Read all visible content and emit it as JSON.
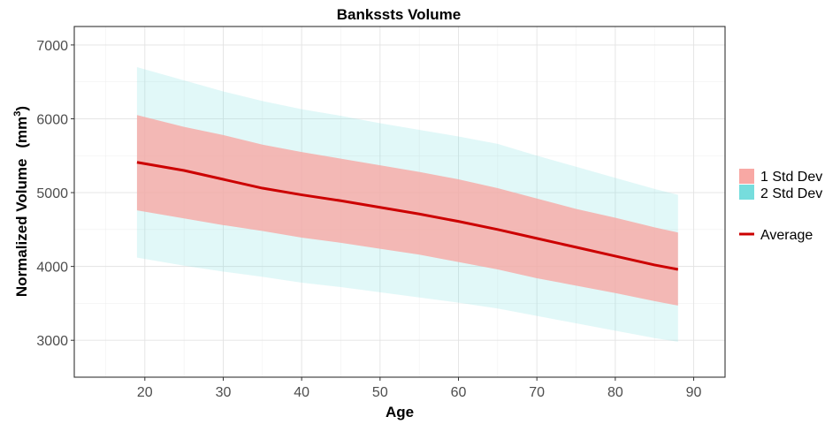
{
  "chart_data": {
    "type": "area",
    "title": "Bankssts Volume",
    "xlabel": "Age",
    "ylabel": "Normalized Volume",
    "ylabel_unit_base": "mm",
    "ylabel_unit_exp": "3",
    "xlim": [
      11,
      94
    ],
    "ylim": [
      2500,
      7250
    ],
    "x_ticks": [
      20,
      30,
      40,
      50,
      60,
      70,
      80,
      90
    ],
    "y_ticks": [
      3000,
      4000,
      5000,
      6000,
      7000
    ],
    "grid": true,
    "legend_position": "right",
    "x": [
      19,
      25,
      30,
      35,
      40,
      45,
      50,
      55,
      60,
      65,
      70,
      75,
      80,
      85,
      88
    ],
    "series": [
      {
        "name": "2 Std Dev",
        "color": "#76dddd",
        "lower": [
          4120,
          4010,
          3930,
          3860,
          3780,
          3720,
          3650,
          3580,
          3510,
          3430,
          3330,
          3230,
          3130,
          3030,
          2980
        ],
        "upper": [
          6700,
          6520,
          6370,
          6240,
          6130,
          6040,
          5940,
          5850,
          5760,
          5660,
          5500,
          5350,
          5200,
          5050,
          4970
        ]
      },
      {
        "name": "1 Std Dev",
        "color": "#f8a8a4",
        "lower": [
          4760,
          4650,
          4560,
          4480,
          4390,
          4320,
          4240,
          4160,
          4060,
          3960,
          3840,
          3740,
          3640,
          3530,
          3470
        ],
        "upper": [
          6050,
          5890,
          5780,
          5650,
          5550,
          5460,
          5370,
          5280,
          5180,
          5060,
          4920,
          4780,
          4660,
          4530,
          4460
        ]
      },
      {
        "name": "Average",
        "color": "#cc0000",
        "values": [
          5410,
          5300,
          5180,
          5060,
          4970,
          4890,
          4800,
          4710,
          4610,
          4500,
          4380,
          4260,
          4140,
          4020,
          3960
        ]
      }
    ]
  }
}
